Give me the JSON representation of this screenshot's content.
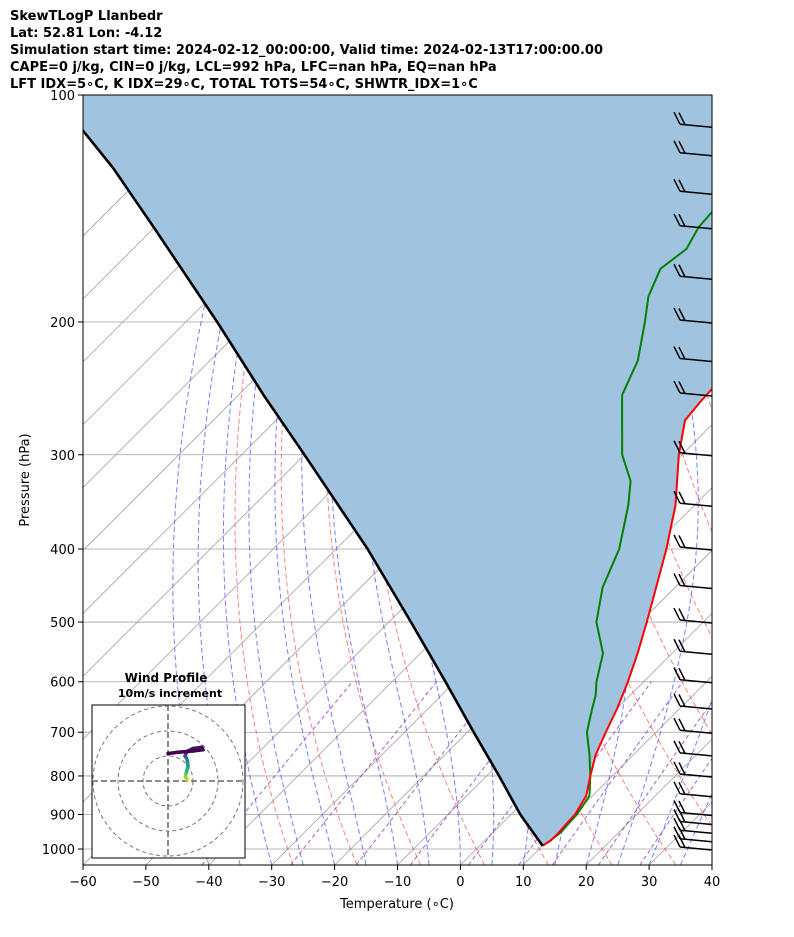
{
  "header": {
    "line1": "SkewTLogP Llanbedr",
    "line2": "Lat: 52.81   Lon: -4.12",
    "line3": "Simulation start time: 2024-02-12_00:00:00, Valid time: 2024-02-13T17:00:00.00",
    "line4": "CAPE=0 j/kg, CIN=0 j/kg, LCL=992 hPa, LFC=nan hPa, EQ=nan hPa",
    "line5": "LFT IDX=5∘C, K IDX=29∘C, TOTAL TOTS=54∘C, SHWTR_IDX=1∘C"
  },
  "chart_data": {
    "type": "line",
    "xlabel": "Temperature (∘C)",
    "ylabel": "Pressure (hPa)",
    "xlim": [
      -60,
      40
    ],
    "ylim": [
      1050,
      100
    ],
    "y_scale": "log",
    "skew": true,
    "grid": true,
    "x_ticks": [
      "−60",
      "−50",
      "−40",
      "−30",
      "−20",
      "−10",
      "0",
      "10",
      "20",
      "30",
      "40"
    ],
    "y_ticks": [
      "100",
      "200",
      "300",
      "400",
      "500",
      "600",
      "700",
      "800",
      "900",
      "1000"
    ],
    "colors": {
      "temperature": "#ff0000",
      "dewpoint": "#008000",
      "parcel": "#000000",
      "cape_fill": "#a0c4df",
      "dry_adiabats": "#ff5555",
      "moist_adiabats": "#4455ff",
      "mixing_ratio": "#9933cc",
      "isotherms": "#a0a0a0"
    },
    "series": [
      {
        "key": "temperature",
        "pressure": [
          990,
          975,
          950,
          925,
          900,
          850,
          800,
          750,
          700,
          650,
          600,
          550,
          500,
          450,
          400,
          350,
          300,
          270,
          255,
          230,
          200,
          180,
          160,
          150,
          140,
          125,
          110,
          100
        ],
        "values": [
          10,
          10.5,
          10.5,
          10.3,
          10.2,
          9,
          6.5,
          4,
          2,
          0,
          -2.5,
          -5.5,
          -9,
          -13,
          -17.5,
          -23,
          -30.5,
          -35,
          -35.5,
          -36,
          -39,
          -42,
          -45,
          -46.8,
          -48.5,
          -51,
          -53.5,
          -55
        ]
      },
      {
        "key": "dewpoint",
        "pressure": [
          990,
          975,
          950,
          925,
          900,
          850,
          800,
          750,
          700,
          650,
          625,
          600,
          550,
          500,
          450,
          400,
          350,
          325,
          300,
          270,
          250,
          225,
          200,
          185,
          170,
          160,
          150,
          130,
          110,
          100
        ],
        "values": [
          10,
          10.4,
          10.8,
          10.6,
          10.5,
          9.5,
          6.5,
          3,
          -1,
          -4,
          -5.5,
          -7.5,
          -11,
          -17,
          -21.5,
          -25,
          -30.5,
          -34,
          -39.5,
          -45,
          -49,
          -52,
          -57,
          -60.5,
          -63,
          -62,
          -63.5,
          -64.5,
          -66,
          -68
        ]
      },
      {
        "key": "parcel",
        "pressure": [
          990,
          900,
          800,
          700,
          600,
          500,
          400,
          300,
          250,
          200,
          150,
          125,
          100
        ],
        "values": [
          10,
          1.5,
          -8,
          -19,
          -31.5,
          -46.5,
          -65,
          -90,
          -106,
          -125,
          -150,
          -166,
          -187
        ]
      }
    ],
    "wind_barbs_pressure": [
      1000,
      975,
      950,
      925,
      900,
      850,
      800,
      750,
      700,
      650,
      600,
      550,
      500,
      450,
      400,
      350,
      300,
      250,
      225,
      200,
      175,
      150,
      135,
      120,
      110
    ],
    "inset": {
      "title": "Wind Profile",
      "subtitle": "10m/s increment",
      "hodograph_u": [
        8,
        7.5,
        7,
        7.2,
        7.5,
        8,
        7.8,
        7.2,
        6.8,
        7.2,
        8,
        10,
        13.5,
        14,
        10,
        4,
        0
      ],
      "hodograph_v": [
        0.5,
        1,
        1.5,
        3,
        4,
        6,
        8,
        9.5,
        10,
        11,
        12,
        13,
        13.5,
        12.5,
        12,
        11.5,
        11
      ]
    }
  }
}
